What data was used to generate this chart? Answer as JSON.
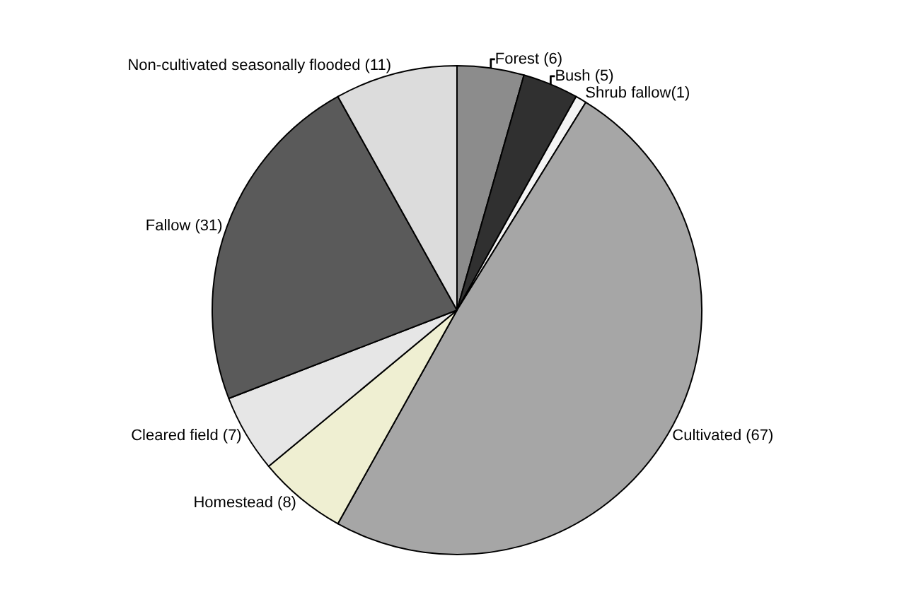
{
  "chart_data": {
    "type": "pie",
    "categories": [
      "Forest (6)",
      "Bush (5)",
      "Shrub fallow(1)",
      "Cultivated (67)",
      "Homestead (8)",
      "Cleared field (7)",
      "Fallow (31)",
      "Non-cultivated seasonally flooded (11)"
    ],
    "values": [
      6,
      5,
      1,
      67,
      8,
      7,
      31,
      11
    ],
    "colors": [
      "#8c8c8c",
      "#303030",
      "#f4f4f4",
      "#a6a6a6",
      "#efefd2",
      "#e6e6e6",
      "#5a5a5a",
      "#dcdcdc"
    ],
    "legend": false
  }
}
